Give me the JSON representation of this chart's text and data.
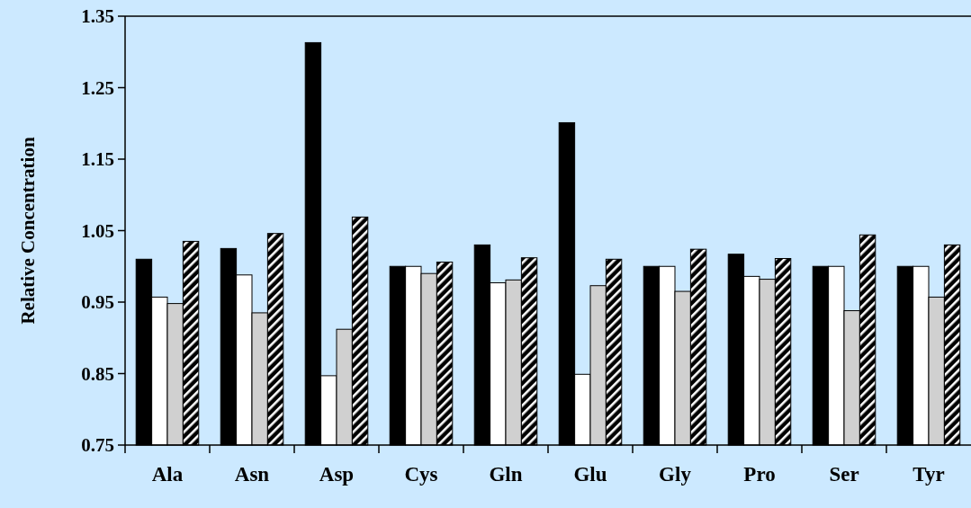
{
  "chart_data": {
    "type": "bar",
    "ylabel": "Relative Concentration",
    "categories": [
      "Ala",
      "Asn",
      "Asp",
      "Cys",
      "Gln",
      "Glu",
      "Gly",
      "Pro",
      "Ser",
      "Tyr"
    ],
    "series": [
      {
        "color": "#000000",
        "values": [
          1.01,
          1.025,
          1.313,
          1.0,
          1.03,
          1.201,
          1.0,
          1.017,
          1.0,
          1.0
        ]
      },
      {
        "color": "#ffffff",
        "values": [
          0.957,
          0.988,
          0.847,
          1.0,
          0.977,
          0.849,
          1.0,
          0.986,
          1.0,
          1.0
        ]
      },
      {
        "color": "#d0d0d0",
        "values": [
          0.948,
          0.935,
          0.912,
          0.99,
          0.981,
          0.973,
          0.965,
          0.982,
          0.938,
          0.957
        ]
      },
      {
        "color": "#000000",
        "values": [
          1.035,
          1.046,
          1.069,
          1.006,
          1.012,
          1.01,
          1.024,
          1.011,
          1.044,
          1.03
        ]
      }
    ],
    "ylim": [
      0.75,
      1.35
    ],
    "yticks": [
      0.75,
      0.85,
      0.95,
      1.05,
      1.15,
      1.25,
      1.35
    ],
    "grid": false
  }
}
